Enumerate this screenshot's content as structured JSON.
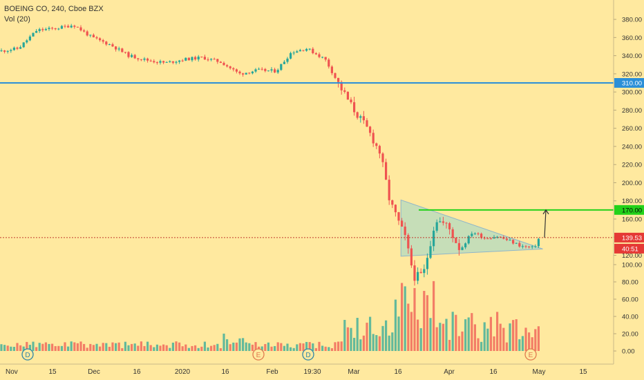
{
  "header": {
    "symbol_line": "BOEING CO, 240, Cboe BZX",
    "volume_line": "Vol (20)"
  },
  "chart_data": {
    "type": "candlestick",
    "ylim": [
      -10,
      390
    ],
    "y_ticks": [
      "380.00",
      "360.00",
      "340.00",
      "320.00",
      "300.00",
      "280.00",
      "260.00",
      "240.00",
      "220.00",
      "200.00",
      "180.00",
      "160.00",
      "140.00",
      "120.00",
      "100.00",
      "80.00",
      "60.00",
      "40.00",
      "20.00",
      "0.00"
    ],
    "y_tick_values": [
      380,
      360,
      340,
      320,
      300,
      280,
      260,
      240,
      220,
      200,
      180,
      160,
      140,
      120,
      100,
      80,
      60,
      40,
      20,
      0
    ],
    "x_ticks": [
      "Nov",
      "15",
      "Dec",
      "16",
      "2020",
      "16",
      "Feb",
      "19:30",
      "Mar",
      "16",
      "Apr",
      "16",
      "May",
      "15"
    ],
    "price_labels": {
      "resistance": "310.00",
      "breakout": "170.00",
      "last_price": "139.53",
      "countdown": "40:51"
    },
    "event_markers": [
      {
        "label": "D",
        "color": "#2e86a8"
      },
      {
        "label": "E",
        "color": "#e07a4f"
      },
      {
        "label": "D",
        "color": "#2e86a8"
      },
      {
        "label": "E",
        "color": "#e07a4f"
      }
    ],
    "horizontal_lines": [
      {
        "value": 310,
        "color": "#2b8fd8"
      },
      {
        "value": 170,
        "color": "#23d21a"
      },
      {
        "value": 139.53,
        "color": "#c0392b",
        "style": "dotted"
      }
    ],
    "triangle_pattern": {
      "vertices": [
        [
          0.06,
          181
        ],
        [
          0.06,
          119
        ],
        [
          0.74,
          127
        ]
      ],
      "fill": "#bcdcbc"
    },
    "colors": {
      "up": "#26a69a",
      "down": "#ef5350",
      "background": "#ffe99f",
      "text": "#333333"
    },
    "price_path": [
      [
        0,
        345
      ],
      [
        0.03,
        348
      ],
      [
        0.06,
        368
      ],
      [
        0.09,
        370
      ],
      [
        0.12,
        374
      ],
      [
        0.15,
        360
      ],
      [
        0.18,
        352
      ],
      [
        0.21,
        340
      ],
      [
        0.24,
        335
      ],
      [
        0.27,
        332
      ],
      [
        0.3,
        336
      ],
      [
        0.33,
        338
      ],
      [
        0.36,
        333
      ],
      [
        0.39,
        320
      ],
      [
        0.42,
        324
      ],
      [
        0.45,
        323
      ],
      [
        0.475,
        344
      ],
      [
        0.5,
        348
      ],
      [
        0.53,
        336
      ],
      [
        0.555,
        305
      ],
      [
        0.575,
        282
      ],
      [
        0.6,
        258
      ],
      [
        0.62,
        232
      ],
      [
        0.635,
        180
      ],
      [
        0.66,
        140
      ],
      [
        0.675,
        96
      ],
      [
        0.69,
        99
      ],
      [
        0.71,
        160
      ],
      [
        0.73,
        152
      ],
      [
        0.75,
        126
      ],
      [
        0.77,
        146
      ],
      [
        0.79,
        139
      ],
      [
        0.81,
        141
      ],
      [
        0.83,
        136
      ],
      [
        0.85,
        130
      ],
      [
        0.87,
        128
      ],
      [
        0.88,
        141
      ]
    ]
  }
}
